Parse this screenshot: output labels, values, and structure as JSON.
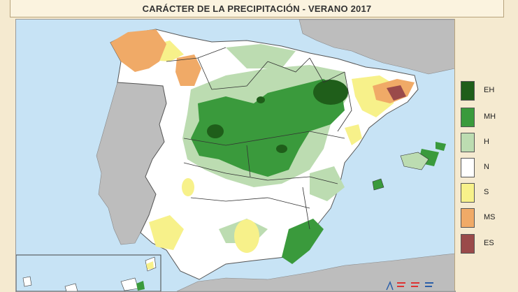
{
  "title": "CARÁCTER DE LA PRECIPITACIÓN - VERANO 2017",
  "legend": [
    {
      "code": "EH",
      "color": "#1f5e1a"
    },
    {
      "code": "MH",
      "color": "#3a9a3c"
    },
    {
      "code": "H",
      "color": "#bcdcb1"
    },
    {
      "code": "N",
      "color": "#ffffff"
    },
    {
      "code": "S",
      "color": "#f7f18a"
    },
    {
      "code": "MS",
      "color": "#f0aa67"
    },
    {
      "code": "ES",
      "color": "#9a4a4a"
    }
  ],
  "colors": {
    "sea": "#c7e3f5",
    "foreign_land": "#bdbdbd",
    "background": "#f5ead0"
  }
}
